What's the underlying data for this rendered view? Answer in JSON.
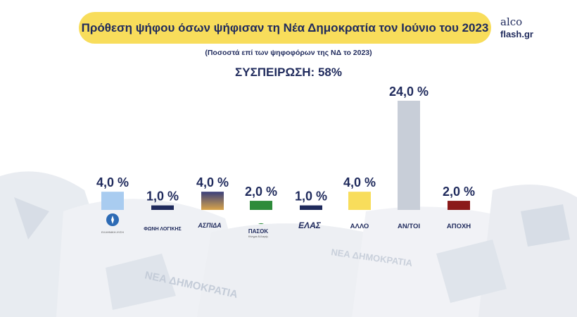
{
  "title": "Πρόθεση ψήφου όσων ψήφισαν τη Νέα Δημοκρατία τον Ιούνιο του 2023",
  "subtitle": "(Ποσοστά επί των ψηφοφόρων της ΝΔ το 2023)",
  "cohesion": "ΣΥΣΠΕΙΡΩΣΗ: 58%",
  "brand": {
    "line1": "alco",
    "line2": "flash.gr"
  },
  "background_text": "ΝΕΑ ΔΗΜΟΚΡΑΤΙΑ",
  "logos": {
    "elliniki_lysi": {
      "name": "ΕΛΛΗΝΙΚΗ ΛΥΣΗ"
    },
    "foni_logikis": {
      "name": "ΦΩΝΗ ΛΟΓΙΚΗΣ"
    },
    "spartiates": {
      "name": "ΑΣΠΙΔΑ"
    },
    "pasok": {
      "name": "ΠΑΣΟΚ",
      "sub": "Κίνημα Αλλαγής"
    },
    "elas": {
      "name": "ΕΛΑΣ"
    }
  },
  "chart_data": {
    "type": "bar",
    "categories": [
      "Ελληνική Λύση",
      "Φωνή Λογικής",
      "Ασπίδα",
      "ΠΑΣΟΚ",
      "ΕΛΑΣ",
      "ΑΛΛΟ",
      "ΑΝ/ΤΟΙ",
      "ΑΠΟΧΗ"
    ],
    "values": [
      4.0,
      1.0,
      4.0,
      2.0,
      1.0,
      4.0,
      24.0,
      2.0
    ],
    "value_labels": [
      "4,0 %",
      "1,0 %",
      "4,0 %",
      "2,0 %",
      "1,0 %",
      "4,0 %",
      "24,0 %",
      "2,0 %"
    ],
    "text_labels": [
      "",
      "",
      "",
      "",
      "",
      "ΑΛΛΟ",
      "ΑΝ/ΤΟΙ",
      "ΑΠΟΧΗ"
    ],
    "colors": [
      "#a9ccf0",
      "#1f2a5c",
      "gradient",
      "#2e8b3a",
      "#1f2a5c",
      "#f8dd5b",
      "#c8ced8",
      "#8b1a1a"
    ],
    "ylim": [
      0,
      24
    ]
  }
}
